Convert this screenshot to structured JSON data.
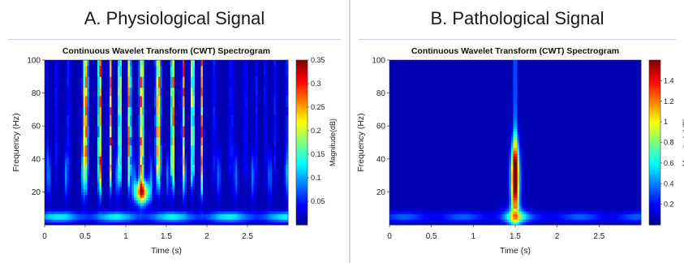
{
  "panels": [
    {
      "title": "A. Physiological Signal"
    },
    {
      "title": "B. Pathological Signal"
    }
  ],
  "colors": {
    "colormap": [
      "#00008f",
      "#0000ff",
      "#0080ff",
      "#00ffff",
      "#80ff80",
      "#ffff00",
      "#ff8000",
      "#ff0000",
      "#800000"
    ],
    "divider": "#cfd9e6"
  },
  "chart_data": [
    {
      "type": "heatmap",
      "title": "Continuous Wavelet Transform (CWT) Spectrogram",
      "xlabel": "Time (s)",
      "ylabel": "Frequency (Hz)",
      "colorbar_label": "Magnitude(dB)",
      "xlim": [
        0,
        3
      ],
      "ylim": [
        0,
        100
      ],
      "xticks": [
        0,
        0.5,
        1,
        1.5,
        2,
        2.5
      ],
      "xtick_labels": [
        "0",
        "0.5",
        "1",
        "1.5",
        "2",
        "2.5"
      ],
      "yticks": [
        20,
        40,
        60,
        80,
        100
      ],
      "ytick_labels": [
        "20",
        "40",
        "60",
        "80",
        "100"
      ],
      "clim": [
        0,
        0.35
      ],
      "cticks": [
        0.05,
        0.1,
        0.15,
        0.2,
        0.25,
        0.3,
        0.35
      ],
      "ctick_labels": [
        "0.05",
        "0.1",
        "0.15",
        "0.2",
        "0.25",
        "0.3",
        "0.35"
      ],
      "features": [
        {
          "kind": "low_band",
          "freq": 5,
          "value": 0.12
        },
        {
          "kind": "burst",
          "time_start": 0.6,
          "time_end": 1.8,
          "freq_min": 40,
          "freq_max": 100,
          "value": 0.3
        },
        {
          "kind": "hotspot",
          "time": 1.2,
          "freq": 20,
          "value": 0.28
        }
      ]
    },
    {
      "type": "heatmap",
      "title": "Continuous Wavelet Transform (CWT) Spectrogram",
      "xlabel": "Time (s)",
      "ylabel": "Frequency (Hz)",
      "colorbar_label": "Magnitude(dB)",
      "xlim": [
        0,
        3
      ],
      "ylim": [
        0,
        100
      ],
      "xticks": [
        0,
        0.5,
        1,
        1.5,
        2,
        2.5
      ],
      "xtick_labels": [
        "0",
        "0.5",
        "1",
        "1.5",
        "2",
        "2.5"
      ],
      "yticks": [
        20,
        40,
        60,
        80,
        100
      ],
      "ytick_labels": [
        "20",
        "40",
        "60",
        "80",
        "100"
      ],
      "clim": [
        0,
        1.6
      ],
      "cticks": [
        0.2,
        0.4,
        0.6,
        0.8,
        1,
        1.2,
        1.4
      ],
      "ctick_labels": [
        "0.2",
        "0.4",
        "0.6",
        "0.8",
        "1",
        "1.2",
        "1.4"
      ],
      "features": [
        {
          "kind": "low_band",
          "freq": 5,
          "value": 0.3
        },
        {
          "kind": "spike",
          "time": 1.5,
          "freq_min": 10,
          "freq_max": 100,
          "peak_freq": 30,
          "value": 1.5
        }
      ]
    }
  ]
}
